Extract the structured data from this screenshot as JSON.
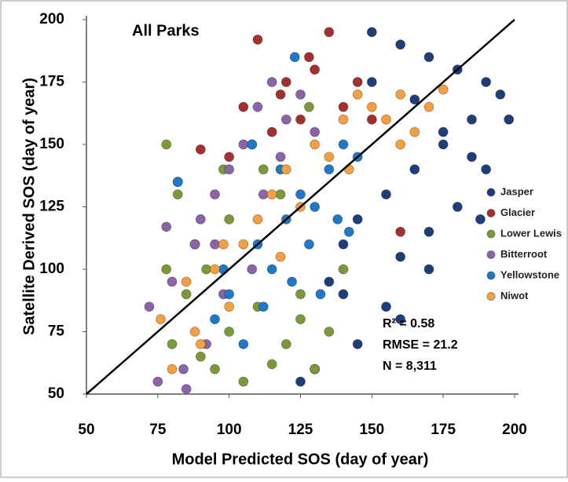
{
  "chart_data": {
    "type": "scatter",
    "title": "All Parks",
    "x_label": "Model Predicted SOS (day of year)",
    "y_label": "Satellite Derived SOS (day of year)",
    "xlim": [
      50,
      200
    ],
    "ylim": [
      50,
      200
    ],
    "xticks": [
      50,
      75,
      100,
      125,
      150,
      175,
      200
    ],
    "yticks": [
      50,
      75,
      100,
      125,
      150,
      175,
      200
    ],
    "legend": "right",
    "annotations": [
      "R² = 0.58",
      "RMSE = 21.2",
      "N =  8,311"
    ],
    "series": [
      {
        "name": "Jasper",
        "color": "#1f3d7a",
        "x": [
          150,
          160,
          170,
          180,
          190,
          195,
          185,
          175,
          165,
          155,
          145,
          140,
          135,
          160,
          170,
          180,
          190,
          198,
          150,
          165,
          175,
          185,
          130,
          125,
          145,
          155,
          170,
          188,
          160,
          140
        ],
        "values": [
          195,
          190,
          185,
          180,
          175,
          170,
          160,
          150,
          140,
          130,
          120,
          110,
          95,
          105,
          115,
          125,
          140,
          160,
          175,
          168,
          155,
          145,
          60,
          55,
          70,
          85,
          100,
          120,
          80,
          90
        ]
      },
      {
        "name": "Glacier",
        "color": "#a3302c",
        "x": [
          110,
          120,
          130,
          135,
          140,
          115,
          125,
          145,
          100,
          90,
          105,
          150,
          160,
          128,
          118
        ],
        "values": [
          192,
          175,
          180,
          195,
          165,
          155,
          160,
          175,
          145,
          148,
          165,
          160,
          115,
          185,
          170
        ]
      },
      {
        "name": "Lower Lewis",
        "color": "#7a9a3a",
        "x": [
          78,
          80,
          85,
          90,
          95,
          100,
          105,
          110,
          115,
          120,
          125,
          130,
          135,
          78,
          88,
          98,
          108,
          118,
          100,
          92,
          125,
          112,
          140,
          82,
          128
        ],
        "values": [
          150,
          70,
          90,
          65,
          60,
          75,
          55,
          85,
          62,
          70,
          80,
          60,
          75,
          100,
          110,
          140,
          150,
          130,
          120,
          100,
          90,
          140,
          100,
          130,
          165
        ]
      },
      {
        "name": "Bitterroot",
        "color": "#8a63a8",
        "x": [
          72,
          75,
          80,
          85,
          88,
          90,
          95,
          100,
          105,
          110,
          115,
          120,
          78,
          84,
          92,
          98,
          108,
          118,
          125,
          130,
          82,
          95,
          112
        ],
        "values": [
          85,
          55,
          95,
          52,
          110,
          120,
          130,
          140,
          150,
          165,
          175,
          160,
          117,
          60,
          70,
          90,
          100,
          145,
          170,
          155,
          135,
          110,
          130
        ]
      },
      {
        "name": "Yellowstone",
        "color": "#1f78c8",
        "x": [
          82,
          95,
          100,
          110,
          115,
          120,
          125,
          130,
          135,
          140,
          145,
          105,
          112,
          122,
          128,
          138,
          98,
          118,
          132,
          142,
          123,
          108
        ],
        "values": [
          135,
          80,
          90,
          110,
          100,
          120,
          130,
          125,
          140,
          150,
          145,
          70,
          85,
          95,
          110,
          120,
          100,
          140,
          90,
          115,
          185,
          150
        ]
      },
      {
        "name": "Niwot",
        "color": "#f5a040",
        "x": [
          76,
          80,
          85,
          90,
          95,
          100,
          105,
          110,
          115,
          120,
          125,
          130,
          135,
          140,
          145,
          150,
          155,
          160,
          165,
          170,
          175,
          88,
          98,
          118,
          142,
          160
        ],
        "values": [
          80,
          60,
          95,
          70,
          100,
          85,
          110,
          120,
          130,
          140,
          125,
          150,
          145,
          160,
          170,
          165,
          160,
          170,
          155,
          165,
          172,
          75,
          110,
          105,
          140,
          150
        ]
      }
    ]
  }
}
